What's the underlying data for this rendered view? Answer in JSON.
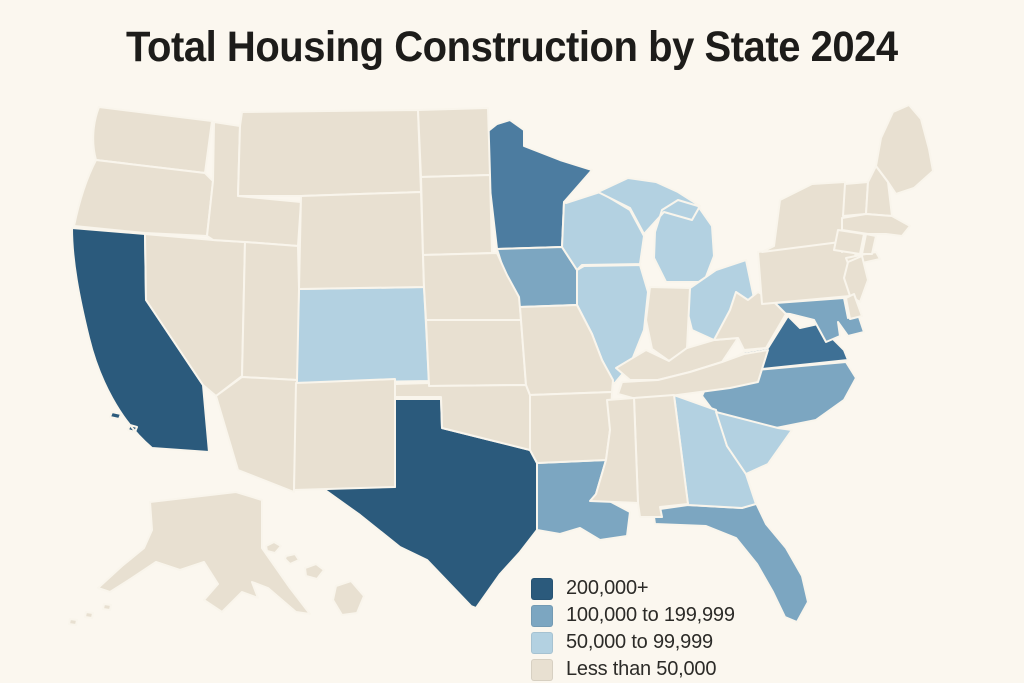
{
  "title": "Total Housing Construction by State 2024",
  "colors": {
    "background": "#FBF7EF",
    "state_border": "#F9F5EC",
    "title_text": "#1D1C1A",
    "legend_text": "#2C2B28"
  },
  "legend": {
    "position": "bottom-center",
    "items": [
      {
        "label": "200,000+",
        "color": "#2B5A7C"
      },
      {
        "label": "100,000 to 199,999",
        "color": "#7CA6C1"
      },
      {
        "label": "50,000 to 99,999",
        "color": "#B3D1E1"
      },
      {
        "label": "Less than 50,000",
        "color": "#E8E0D1"
      }
    ]
  },
  "chart_data": {
    "type": "choropleth",
    "region": "United States",
    "title": "Total Housing Construction by State 2024",
    "unit": "housing units constructed, 2024",
    "categories": [
      "200,000+",
      "100,000 to 199,999",
      "50,000 to 99,999",
      "Less than 50,000"
    ],
    "palette": {
      "200,000+": "#2B5A7C",
      "100,000 to 199,999": "#7CA6C1",
      "50,000 to 99,999": "#B3D1E1",
      "Less than 50,000": "#E8E0D1"
    },
    "fill_overrides": {
      "MN": "#4C7CA0",
      "VA": "#3E7095"
    },
    "states": [
      {
        "abbr": "CA",
        "name": "California",
        "category": "200,000+"
      },
      {
        "abbr": "TX",
        "name": "Texas",
        "category": "200,000+"
      },
      {
        "abbr": "MN",
        "name": "Minnesota",
        "category": "100,000 to 199,999"
      },
      {
        "abbr": "IA",
        "name": "Iowa",
        "category": "100,000 to 199,999"
      },
      {
        "abbr": "LA",
        "name": "Louisiana",
        "category": "100,000 to 199,999"
      },
      {
        "abbr": "FL",
        "name": "Florida",
        "category": "100,000 to 199,999"
      },
      {
        "abbr": "NC",
        "name": "North Carolina",
        "category": "100,000 to 199,999"
      },
      {
        "abbr": "VA",
        "name": "Virginia",
        "category": "100,000 to 199,999"
      },
      {
        "abbr": "MD",
        "name": "Maryland",
        "category": "100,000 to 199,999"
      },
      {
        "abbr": "CO",
        "name": "Colorado",
        "category": "50,000 to 99,999"
      },
      {
        "abbr": "WI",
        "name": "Wisconsin",
        "category": "50,000 to 99,999"
      },
      {
        "abbr": "MI",
        "name": "Michigan",
        "category": "50,000 to 99,999"
      },
      {
        "abbr": "IL",
        "name": "Illinois",
        "category": "50,000 to 99,999"
      },
      {
        "abbr": "OH",
        "name": "Ohio",
        "category": "50,000 to 99,999"
      },
      {
        "abbr": "GA",
        "name": "Georgia",
        "category": "50,000 to 99,999"
      },
      {
        "abbr": "SC",
        "name": "South Carolina",
        "category": "50,000 to 99,999"
      },
      {
        "abbr": "WA",
        "name": "Washington",
        "category": "Less than 50,000"
      },
      {
        "abbr": "OR",
        "name": "Oregon",
        "category": "Less than 50,000"
      },
      {
        "abbr": "NV",
        "name": "Nevada",
        "category": "Less than 50,000"
      },
      {
        "abbr": "ID",
        "name": "Idaho",
        "category": "Less than 50,000"
      },
      {
        "abbr": "MT",
        "name": "Montana",
        "category": "Less than 50,000"
      },
      {
        "abbr": "WY",
        "name": "Wyoming",
        "category": "Less than 50,000"
      },
      {
        "abbr": "UT",
        "name": "Utah",
        "category": "Less than 50,000"
      },
      {
        "abbr": "AZ",
        "name": "Arizona",
        "category": "Less than 50,000"
      },
      {
        "abbr": "NM",
        "name": "New Mexico",
        "category": "Less than 50,000"
      },
      {
        "abbr": "ND",
        "name": "North Dakota",
        "category": "Less than 50,000"
      },
      {
        "abbr": "SD",
        "name": "South Dakota",
        "category": "Less than 50,000"
      },
      {
        "abbr": "NE",
        "name": "Nebraska",
        "category": "Less than 50,000"
      },
      {
        "abbr": "KS",
        "name": "Kansas",
        "category": "Less than 50,000"
      },
      {
        "abbr": "OK",
        "name": "Oklahoma",
        "category": "Less than 50,000"
      },
      {
        "abbr": "MO",
        "name": "Missouri",
        "category": "Less than 50,000"
      },
      {
        "abbr": "AR",
        "name": "Arkansas",
        "category": "Less than 50,000"
      },
      {
        "abbr": "IN",
        "name": "Indiana",
        "category": "Less than 50,000"
      },
      {
        "abbr": "KY",
        "name": "Kentucky",
        "category": "Less than 50,000"
      },
      {
        "abbr": "TN",
        "name": "Tennessee",
        "category": "Less than 50,000"
      },
      {
        "abbr": "WV",
        "name": "West Virginia",
        "category": "Less than 50,000"
      },
      {
        "abbr": "AL",
        "name": "Alabama",
        "category": "Less than 50,000"
      },
      {
        "abbr": "MS",
        "name": "Mississippi",
        "category": "Less than 50,000"
      },
      {
        "abbr": "PA",
        "name": "Pennsylvania",
        "category": "Less than 50,000"
      },
      {
        "abbr": "NY",
        "name": "New York",
        "category": "Less than 50,000"
      },
      {
        "abbr": "VT",
        "name": "Vermont",
        "category": "Less than 50,000"
      },
      {
        "abbr": "NH",
        "name": "New Hampshire",
        "category": "Less than 50,000"
      },
      {
        "abbr": "ME",
        "name": "Maine",
        "category": "Less than 50,000"
      },
      {
        "abbr": "MA",
        "name": "Massachusetts",
        "category": "Less than 50,000"
      },
      {
        "abbr": "CT",
        "name": "Connecticut",
        "category": "Less than 50,000"
      },
      {
        "abbr": "RI",
        "name": "Rhode Island",
        "category": "Less than 50,000"
      },
      {
        "abbr": "NJ",
        "name": "New Jersey",
        "category": "Less than 50,000"
      },
      {
        "abbr": "DE",
        "name": "Delaware",
        "category": "Less than 50,000"
      },
      {
        "abbr": "AK",
        "name": "Alaska",
        "category": "Less than 50,000"
      },
      {
        "abbr": "HI",
        "name": "Hawaii",
        "category": "Less than 50,000"
      }
    ]
  }
}
